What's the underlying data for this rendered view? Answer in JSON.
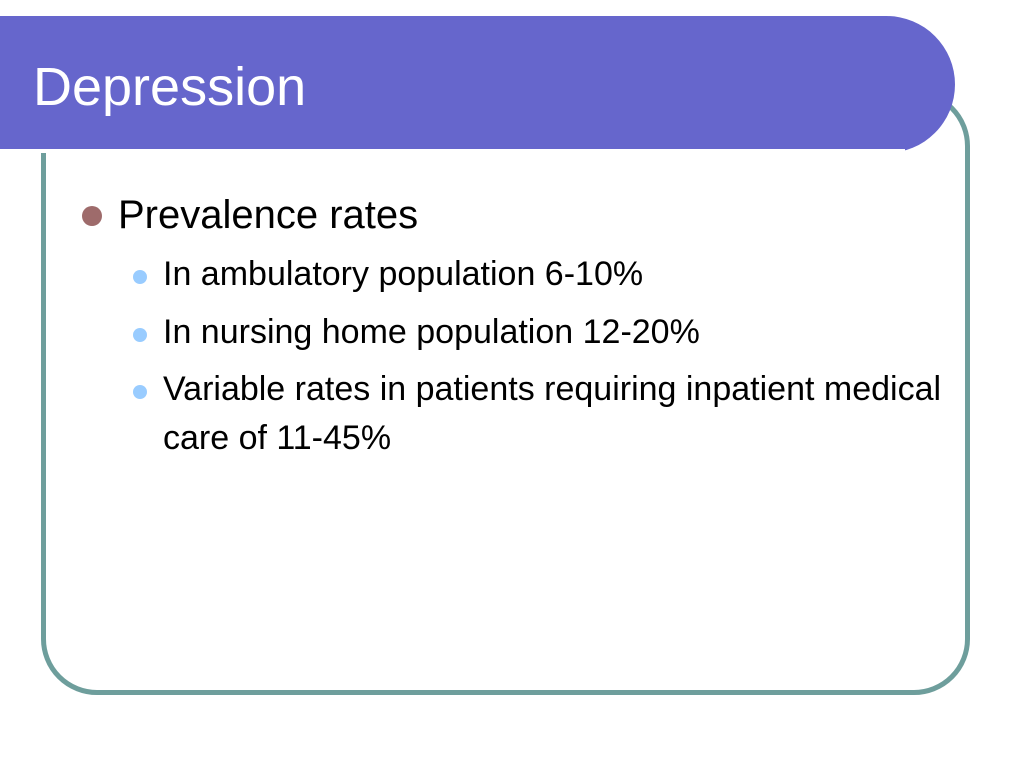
{
  "slide": {
    "title": "Depression",
    "bullets": [
      {
        "text": "Prevalence rates",
        "sub_bullets": [
          {
            "text": "In ambulatory population 6-10%"
          },
          {
            "text": "In nursing home population 12-20%"
          },
          {
            "text": "Variable rates in patients requiring inpatient medical care of 11-45%"
          }
        ]
      }
    ]
  },
  "colors": {
    "title_bar": "#6666CC",
    "frame_border": "#6E9E9C",
    "level1_bullet": "#9E6B6B",
    "level2_bullet": "#99CCFF"
  }
}
